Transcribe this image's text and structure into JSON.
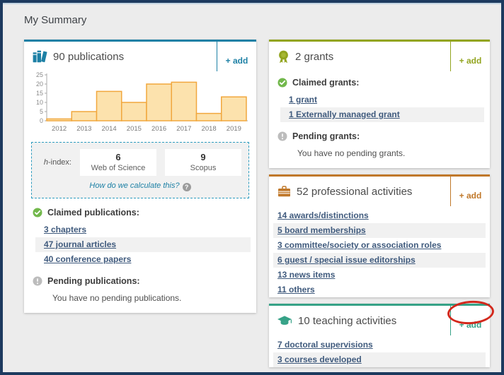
{
  "page_title": "My Summary",
  "colors": {
    "frame_border": "#1d3a5f",
    "background": "#ececec",
    "publications_accent": "#1d80a5",
    "grants_accent": "#92a41f",
    "professional_accent": "#c0782a",
    "teaching_accent": "#36a287",
    "link": "#3f5a7d",
    "annotation_red": "#d3281c",
    "check_green": "#72b84c",
    "pending_gray": "#bcbcbc"
  },
  "chart_data": {
    "type": "bar",
    "categories": [
      "2012",
      "2013",
      "2014",
      "2015",
      "2016",
      "2017",
      "2018",
      "2019"
    ],
    "values": [
      1,
      5,
      16,
      10,
      20,
      21,
      4,
      13
    ],
    "title": "",
    "xlabel": "",
    "ylabel": "",
    "ylim": [
      0,
      25
    ],
    "yticks": [
      0,
      5,
      10,
      15,
      20,
      25
    ],
    "grid": false,
    "legend": "none",
    "bar_fill": "#fce2ad",
    "bar_stroke": "#f1a73d"
  },
  "publications": {
    "title": "90 publications",
    "add_label": "+ add",
    "h_index": {
      "label_em": "h",
      "label_rest": "-index:",
      "entries": [
        {
          "value": "6",
          "source": "Web of Science"
        },
        {
          "value": "9",
          "source": "Scopus"
        }
      ],
      "help_text": "How do we calculate this?",
      "help_icon": "question-icon"
    },
    "claimed_heading": "Claimed publications:",
    "claimed_links": [
      "3 chapters",
      "47 journal articles",
      "40 conference papers"
    ],
    "pending_heading": "Pending publications:",
    "pending_message": "You have no pending publications."
  },
  "grants": {
    "title": "2 grants",
    "add_label": "+ add",
    "claimed_heading": "Claimed grants:",
    "claimed_links": [
      "1 grant",
      "1 Externally managed grant"
    ],
    "pending_heading": "Pending grants:",
    "pending_message": "You have no pending grants."
  },
  "professional": {
    "title": "52 professional activities",
    "add_label": "+ add",
    "links": [
      "14 awards/distinctions",
      "5 board memberships",
      "3 committee/society or association roles",
      "6 guest / special issue editorships",
      "13 news items",
      "11 others"
    ]
  },
  "teaching": {
    "title": "10 teaching activities",
    "add_label": "+ add",
    "links": [
      "7 doctoral supervisions",
      "3 courses developed"
    ]
  }
}
